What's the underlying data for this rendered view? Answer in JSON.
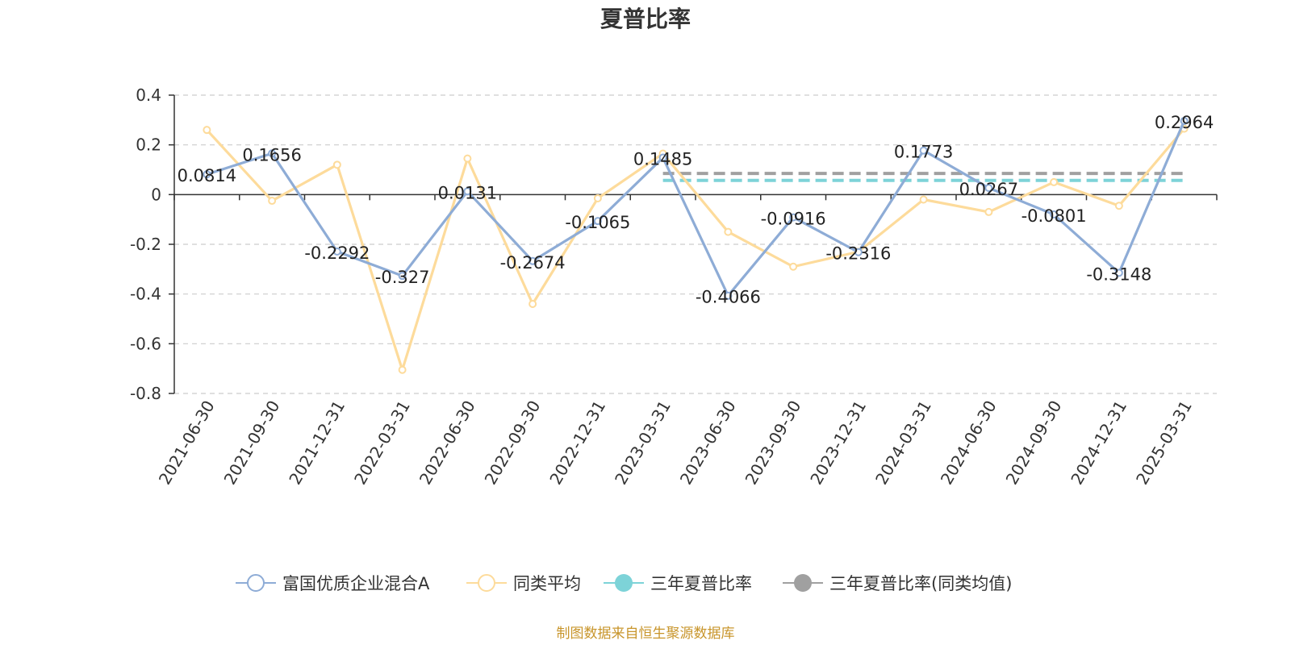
{
  "chart_data": {
    "type": "line",
    "title": "夏普比率",
    "categories": [
      "2021-06-30",
      "2021-09-30",
      "2021-12-31",
      "2022-03-31",
      "2022-06-30",
      "2022-09-30",
      "2022-12-31",
      "2023-03-31",
      "2023-06-30",
      "2023-09-30",
      "2023-12-31",
      "2024-03-31",
      "2024-06-30",
      "2024-09-30",
      "2024-12-31",
      "2025-03-31"
    ],
    "ylim": [
      -0.8,
      0.4
    ],
    "yticks": [
      "0.4",
      "0.2",
      "0",
      "-0.2",
      "-0.4",
      "-0.6",
      "-0.8"
    ],
    "grid": true,
    "legend_position": "bottom",
    "series": [
      {
        "name": "富国优质企业混合A",
        "color": "#8eacd6",
        "values": [
          0.0814,
          0.1656,
          -0.2292,
          -0.327,
          0.0131,
          -0.2674,
          -0.1065,
          0.1485,
          -0.4066,
          -0.0916,
          -0.2316,
          0.1773,
          0.0267,
          -0.0801,
          -0.3148,
          0.2964
        ],
        "labels": [
          "0.0814",
          "0.1656",
          "-0.2292",
          "-0.327",
          "0.0131",
          "-0.2674",
          "-0.1065",
          "0.1485",
          "-0.4066",
          "-0.0916",
          "-0.2316",
          "0.1773",
          "0.0267",
          "-0.0801",
          "-0.3148",
          "0.2964"
        ]
      },
      {
        "name": "同类平均",
        "color": "#fddb9b",
        "values": [
          0.26,
          -0.025,
          0.12,
          -0.705,
          0.145,
          -0.44,
          -0.015,
          0.165,
          -0.15,
          -0.29,
          -0.23,
          -0.02,
          -0.07,
          0.05,
          -0.045,
          0.265
        ]
      }
    ],
    "reference_lines": [
      {
        "name": "三年夏普比率",
        "color": "#7dd3d8",
        "value": 0.057,
        "from": "2023-03-31",
        "to": "2025-03-31"
      },
      {
        "name": "三年夏普比率(同类均值)",
        "color": "#a0a0a0",
        "value": 0.085,
        "from": "2023-03-31",
        "to": "2025-03-31"
      }
    ]
  },
  "source_text": "制图数据来自恒生聚源数据库"
}
